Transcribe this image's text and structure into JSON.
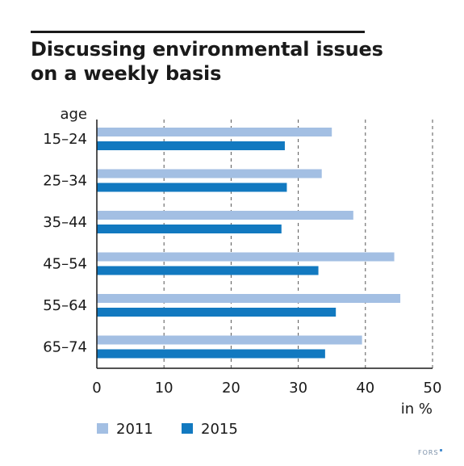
{
  "title": "Discussing environmental issues on a weekly basis",
  "brand": "FORS",
  "chart_data": {
    "type": "bar",
    "orientation": "horizontal",
    "title": "Discussing environmental issues on a weekly basis",
    "ylabel": "age",
    "xlabel": "in %",
    "categories": [
      "15–24",
      "25–34",
      "35–44",
      "45–54",
      "55–64",
      "65–74"
    ],
    "series": [
      {
        "name": "2011",
        "color": "#a3bfe3",
        "values": [
          35.0,
          33.5,
          38.2,
          44.3,
          45.2,
          39.5
        ]
      },
      {
        "name": "2015",
        "color": "#1279c0",
        "values": [
          28.0,
          28.3,
          27.5,
          33.0,
          35.6,
          34.0
        ]
      }
    ],
    "xlim": [
      0,
      50
    ],
    "xticks": [
      0,
      10,
      20,
      30,
      40,
      50
    ],
    "grid": "vertical dashed",
    "legend": "bottom-left"
  }
}
